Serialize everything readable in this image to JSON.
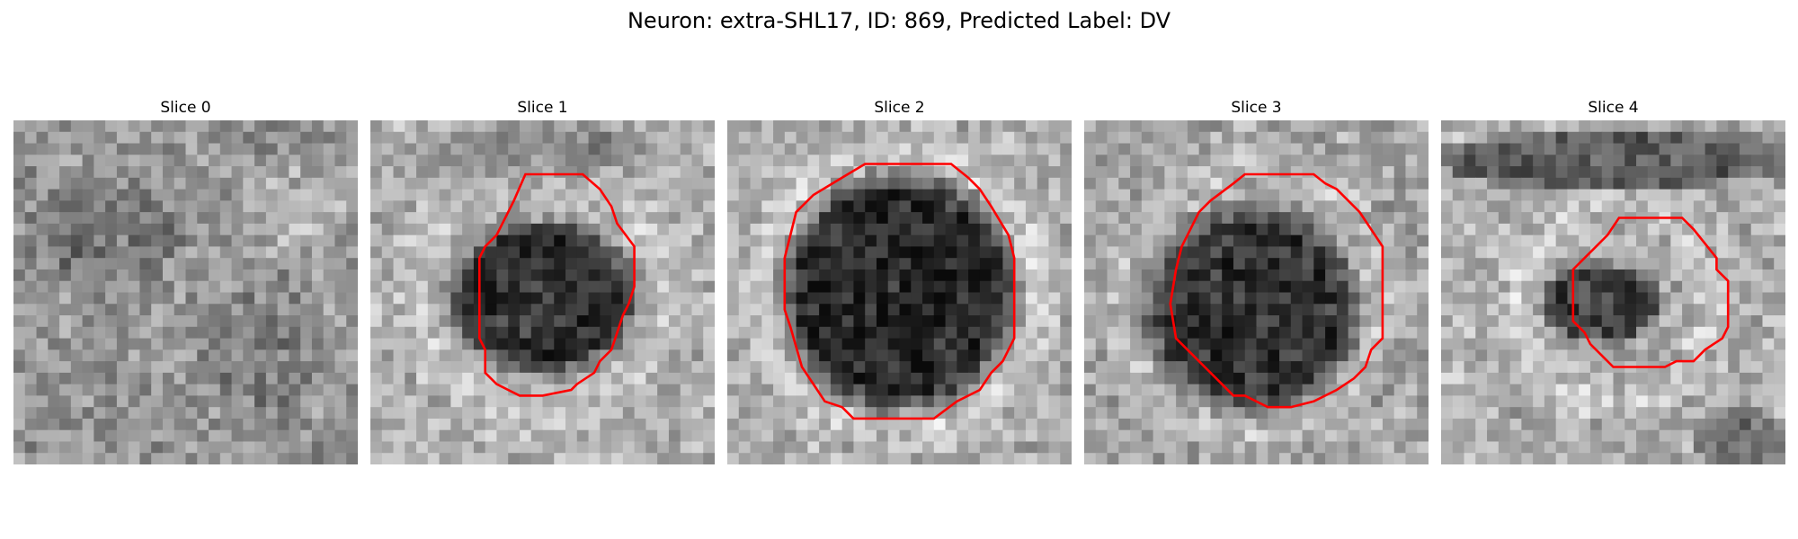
{
  "figure": {
    "title": "Neuron: extra-SHL17, ID: 869, Predicted Label: DV"
  },
  "colors": {
    "outline": "#ff0000",
    "background": "#ffffff"
  },
  "slices": [
    {
      "title": "Slice 0",
      "has_outline": false
    },
    {
      "title": "Slice 1",
      "has_outline": true
    },
    {
      "title": "Slice 2",
      "has_outline": true
    },
    {
      "title": "Slice 3",
      "has_outline": true
    },
    {
      "title": "Slice 4",
      "has_outline": true
    }
  ]
}
